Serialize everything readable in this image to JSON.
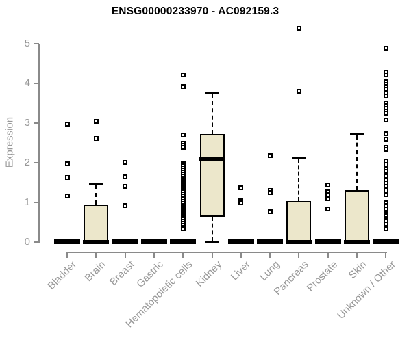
{
  "title": "ENSG00000233970 - AC092159.3",
  "colors": {
    "box_fill": "#ece7cb",
    "box_line": "#000000",
    "axis_line": "#8a8a8a",
    "tick_text": "#979797",
    "title_text": "#000000"
  },
  "chart_data": {
    "type": "boxplot",
    "title": "ENSG00000233970 - AC092159.3",
    "xlabel": "",
    "ylabel": "Expression",
    "ylim": [
      0,
      5.4
    ],
    "yticks": [
      0,
      1,
      2,
      3,
      4,
      5
    ],
    "grid": false,
    "legend": "none",
    "categories": [
      "Bladder",
      "Brain",
      "Breast",
      "Gastric",
      "Hematopoietic cells",
      "Kidney",
      "Liver",
      "Lung",
      "Pancreas",
      "Prostate",
      "Skin",
      "Unknown / Other"
    ],
    "boxes": [
      {
        "category": "Bladder",
        "q1": 0,
        "median": 0,
        "q3": 0,
        "whisker_low": 0,
        "whisker_high": 0,
        "outliers": [
          2.97,
          1.97,
          1.63,
          1.17
        ]
      },
      {
        "category": "Brain",
        "q1": 0,
        "median": 0,
        "q3": 0.95,
        "whisker_low": 0,
        "whisker_high": 1.47,
        "outliers": [
          3.05,
          2.61
        ]
      },
      {
        "category": "Breast",
        "q1": 0,
        "median": 0,
        "q3": 0,
        "whisker_low": 0,
        "whisker_high": 0,
        "outliers": [
          2.01,
          1.64,
          1.4,
          0.92
        ]
      },
      {
        "category": "Gastric",
        "q1": 0,
        "median": 0,
        "q3": 0,
        "whisker_low": 0,
        "whisker_high": 0,
        "outliers": []
      },
      {
        "category": "Hematopoietic cells",
        "q1": 0,
        "median": 0,
        "q3": 0,
        "whisker_low": 0,
        "whisker_high": 0,
        "outliers": [
          4.21,
          3.92,
          2.7,
          2.5,
          2.44,
          2.38,
          1.97,
          1.92,
          1.87,
          1.82,
          1.77,
          1.72,
          1.67,
          1.62,
          1.57,
          1.52,
          1.47,
          1.42,
          1.37,
          1.32,
          1.27,
          1.22,
          1.17,
          1.12,
          1.07,
          1.02,
          0.97,
          0.92,
          0.87,
          0.82,
          0.77,
          0.72,
          0.67,
          0.62,
          0.57,
          0.52,
          0.47,
          0.42,
          0.37,
          0.33
        ]
      },
      {
        "category": "Kidney",
        "q1": 0.63,
        "median": 2.08,
        "q3": 2.73,
        "whisker_low": 0.02,
        "whisker_high": 3.77,
        "outliers": []
      },
      {
        "category": "Liver",
        "q1": 0,
        "median": 0,
        "q3": 0,
        "whisker_low": 0,
        "whisker_high": 0,
        "outliers": [
          1.37,
          1.05,
          1.0
        ]
      },
      {
        "category": "Lung",
        "q1": 0,
        "median": 0,
        "q3": 0,
        "whisker_low": 0,
        "whisker_high": 0,
        "outliers": [
          2.18,
          1.3,
          1.25,
          0.76
        ]
      },
      {
        "category": "Pancreas",
        "q1": 0,
        "median": 0,
        "q3": 1.04,
        "whisker_low": 0,
        "whisker_high": 2.13,
        "outliers": [
          5.38,
          3.8
        ]
      },
      {
        "category": "Prostate",
        "q1": 0,
        "median": 0,
        "q3": 0,
        "whisker_low": 0,
        "whisker_high": 0,
        "outliers": [
          1.44,
          1.26,
          1.19,
          1.09,
          0.83
        ]
      },
      {
        "category": "Skin",
        "q1": 0,
        "median": 0,
        "q3": 1.31,
        "whisker_low": 0,
        "whisker_high": 2.72,
        "outliers": []
      },
      {
        "category": "Unknown / Other",
        "q1": 0,
        "median": 0,
        "q3": 0,
        "whisker_low": 0,
        "whisker_high": 0,
        "outliers": [
          4.88,
          4.29,
          4.22,
          4.05,
          3.98,
          3.92,
          3.86,
          3.77,
          3.68,
          3.51,
          3.44,
          3.37,
          3.3,
          3.25,
          3.08,
          2.73,
          2.59,
          2.39,
          2.33,
          2.04,
          1.95,
          1.86,
          1.78,
          1.66,
          1.57,
          1.49,
          1.4,
          1.3,
          1.19,
          1.0,
          0.92,
          0.83,
          0.71,
          0.66,
          0.6,
          0.54,
          0.45,
          0.33
        ]
      }
    ]
  }
}
